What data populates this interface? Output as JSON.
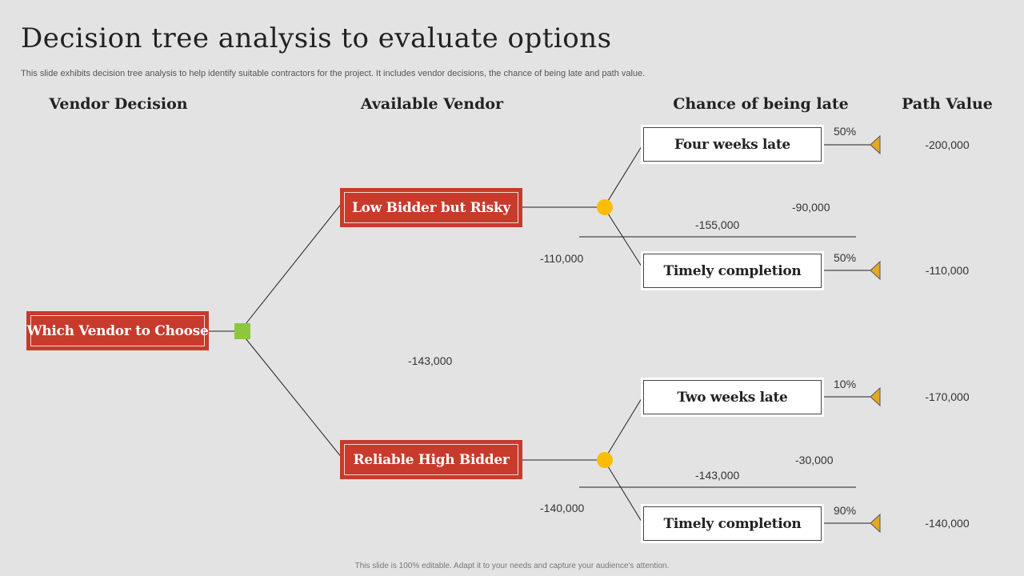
{
  "title": "Decision tree analysis to evaluate options",
  "subtitle": "This slide exhibits decision tree analysis to help identify suitable contractors for the project. It includes vendor decisions, the chance of being late and path value.",
  "columns": {
    "vendor_decision": "Vendor Decision",
    "available_vendor": "Available Vendor",
    "chance_late": "Chance of being late",
    "path_value": "Path Value"
  },
  "root": {
    "label": "Which Vendor to Choose",
    "value": "-143,000"
  },
  "vendors": [
    {
      "label": "Low Bidder but Risky",
      "expected": "-110,000",
      "difference": "-90,000",
      "combined": "-155,000",
      "outcomes": [
        {
          "label": "Four weeks late",
          "probability": "50%",
          "path_value": "-200,000"
        },
        {
          "label": "Timely completion",
          "probability": "50%",
          "path_value": "-110,000"
        }
      ]
    },
    {
      "label": "Reliable High Bidder",
      "expected": "-140,000",
      "difference": "-30,000",
      "combined": "-143,000",
      "outcomes": [
        {
          "label": "Two weeks late",
          "probability": "10%",
          "path_value": "-170,000"
        },
        {
          "label": "Timely completion",
          "probability": "90%",
          "path_value": "-140,000"
        }
      ]
    }
  ],
  "footer": "This slide is 100% editable. Adapt it to your needs and capture your audience's attention.",
  "colors": {
    "background": "#e3e3e3",
    "decision_box": "#c83a2b",
    "decision_node": "#8dc63f",
    "chance_node": "#fbbc05",
    "terminal_node": "#e5a823"
  }
}
